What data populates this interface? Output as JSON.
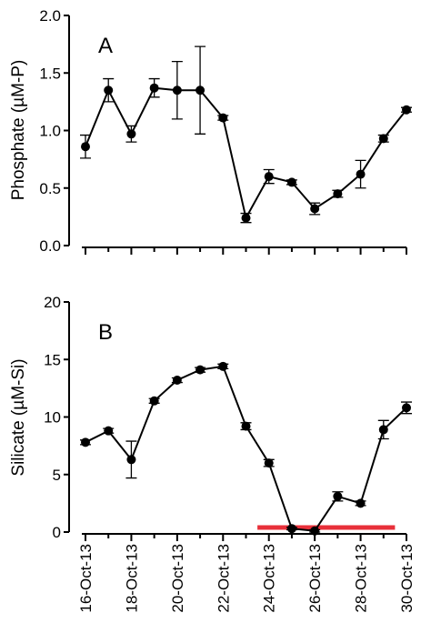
{
  "chart_data": [
    {
      "type": "line",
      "panel_label": "A",
      "ylabel": "Phosphate (µM-P)",
      "ylim": [
        0,
        2.0
      ],
      "yticks": [
        "0.0",
        "0.5",
        "1.0",
        "1.5",
        "2.0"
      ],
      "series": [
        {
          "x": [
            "2013-10-16",
            "2013-10-17",
            "2013-10-18",
            "2013-10-19",
            "2013-10-20",
            "2013-10-21",
            "2013-10-22",
            "2013-10-23",
            "2013-10-24",
            "2013-10-25",
            "2013-10-26",
            "2013-10-27",
            "2013-10-28",
            "2013-10-29",
            "2013-10-30"
          ],
          "y": [
            0.86,
            1.35,
            0.97,
            1.37,
            1.35,
            1.35,
            1.11,
            0.24,
            0.6,
            0.55,
            0.32,
            0.45,
            0.62,
            0.93,
            1.18
          ],
          "err": [
            0.1,
            0.1,
            0.07,
            0.08,
            0.25,
            0.38,
            0.02,
            0.04,
            0.06,
            0.02,
            0.05,
            0.03,
            0.12,
            0.03,
            0.02
          ]
        }
      ]
    },
    {
      "type": "line",
      "panel_label": "B",
      "ylabel": "Silicate (µM-Si)",
      "ylim": [
        0,
        20
      ],
      "yticks": [
        "0",
        "5",
        "10",
        "15",
        "20"
      ],
      "series": [
        {
          "x": [
            "2013-10-16",
            "2013-10-17",
            "2013-10-18",
            "2013-10-19",
            "2013-10-20",
            "2013-10-21",
            "2013-10-22",
            "2013-10-23",
            "2013-10-24",
            "2013-10-25",
            "2013-10-26",
            "2013-10-27",
            "2013-10-28",
            "2013-10-29",
            "2013-10-30"
          ],
          "y": [
            7.8,
            8.8,
            6.3,
            11.4,
            13.2,
            14.1,
            14.4,
            9.2,
            6.0,
            0.3,
            0.1,
            3.1,
            2.5,
            8.9,
            10.8
          ],
          "err": [
            0.2,
            0.2,
            1.6,
            0.2,
            0.2,
            0.2,
            0.2,
            0.3,
            0.3,
            0.1,
            0.1,
            0.4,
            0.2,
            0.8,
            0.5
          ]
        }
      ],
      "highlight_bar": {
        "x_start": "2013-10-23.5",
        "x_end": "2013-10-29.5",
        "y": 0.4,
        "color": "#e8303a"
      }
    }
  ],
  "x_axis": {
    "xlim": [
      "2013-10-16",
      "2013-10-30"
    ],
    "tick_labels": [
      "16-Oct-13",
      "18-Oct-13",
      "20-Oct-13",
      "22-Oct-13",
      "24-Oct-13",
      "26-Oct-13",
      "28-Oct-13",
      "30-Oct-13"
    ]
  },
  "colors": {
    "line": "#000000",
    "highlight": "#e8303a"
  }
}
